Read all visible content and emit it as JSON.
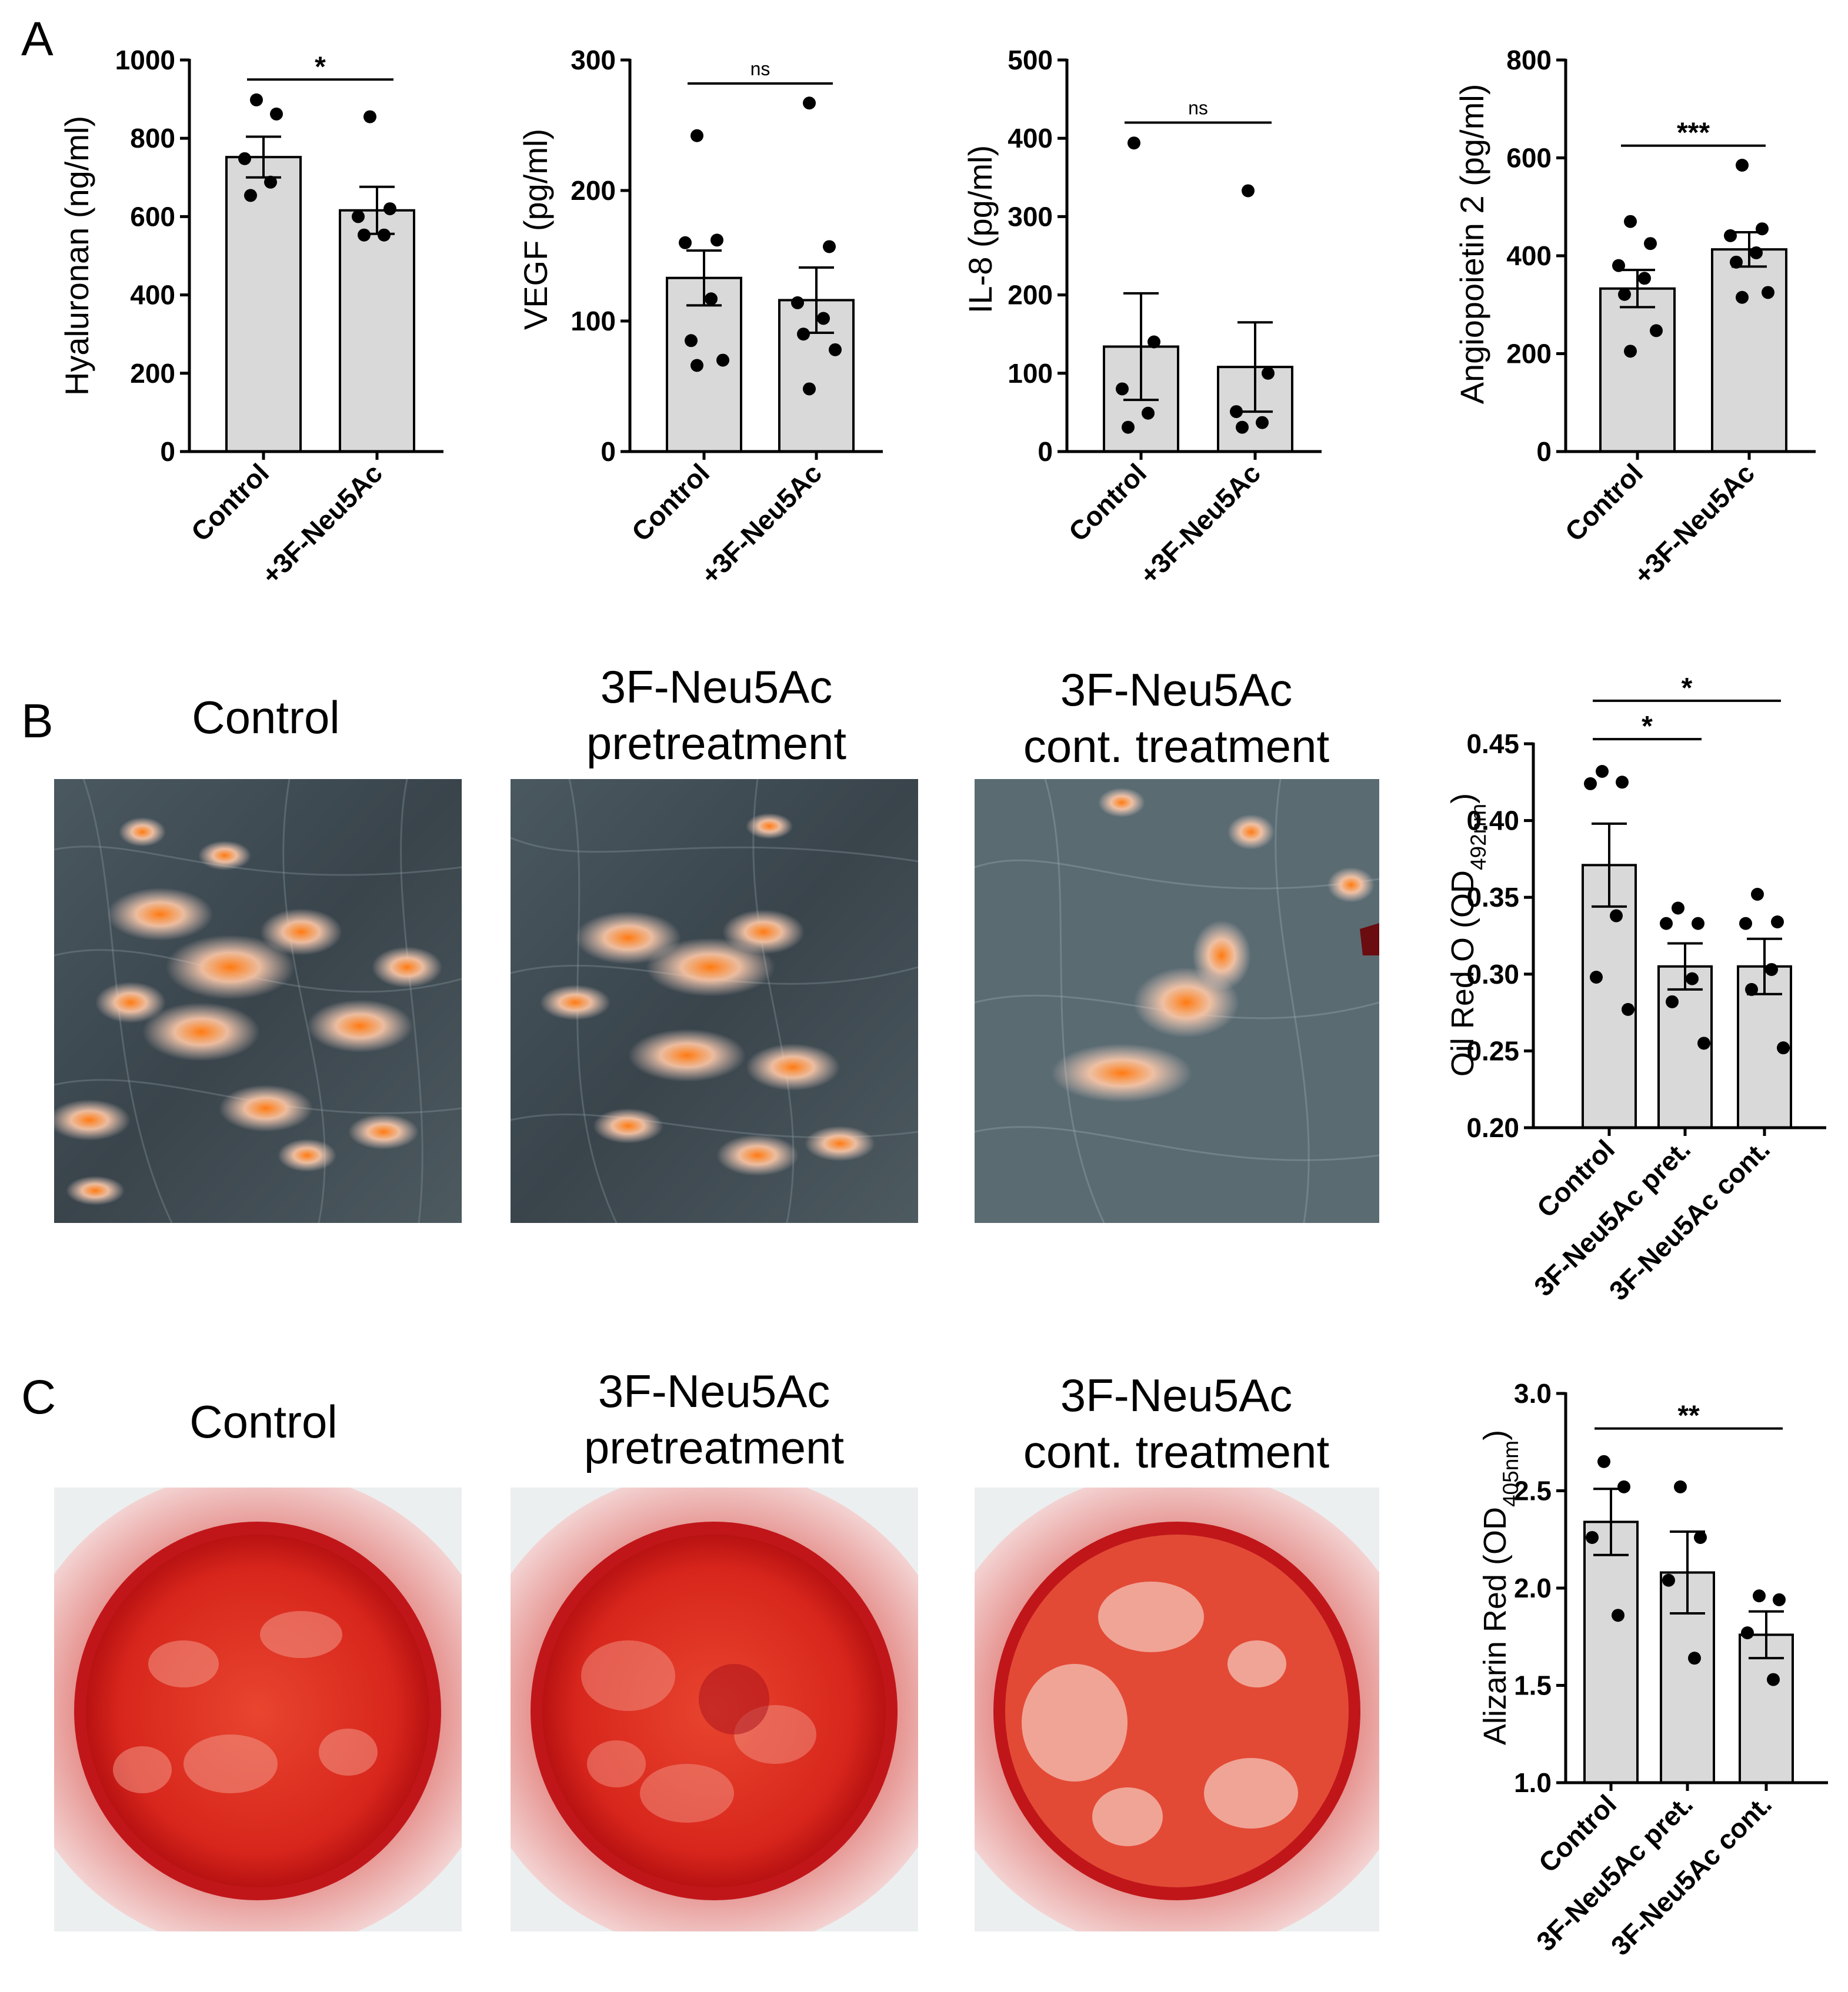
{
  "panels": {
    "A": {
      "letter": "A"
    },
    "B": {
      "letter": "B",
      "images": [
        {
          "title": [
            "Control"
          ]
        },
        {
          "title": [
            "3F-Neu5Ac",
            "pretreatment"
          ]
        },
        {
          "title": [
            "3F-Neu5Ac",
            "cont. treatment"
          ]
        }
      ]
    },
    "C": {
      "letter": "C",
      "images": [
        {
          "title": [
            "Control"
          ]
        },
        {
          "title": [
            "3F-Neu5Ac",
            "pretreatment"
          ]
        },
        {
          "title": [
            "3F-Neu5Ac",
            "cont. treatment"
          ]
        }
      ]
    }
  },
  "colors": {
    "bar_fill": "#d9d9d9",
    "axis": "#000000",
    "microscopy_bg": "#3d4a52",
    "stain_orange": "#ff8a1e",
    "dish_red": "#d8261c"
  },
  "chart_data": [
    {
      "id": "A1",
      "type": "bar",
      "ylabel": "Hyaluronan (ng/ml)",
      "ylim": [
        0,
        1000
      ],
      "yticks": [
        0,
        200,
        400,
        600,
        800,
        1000
      ],
      "categories": [
        "Control",
        "+3F-Neu5Ac"
      ],
      "values": [
        752,
        616
      ],
      "errors": [
        52,
        60
      ],
      "points": [
        [
          898,
          862,
          748,
          688,
          654
        ],
        [
          855,
          620,
          600,
          553,
          553
        ]
      ],
      "comparisons": [
        {
          "from": 0,
          "to": 1,
          "label": "*",
          "y": 950
        }
      ]
    },
    {
      "id": "A2",
      "type": "bar",
      "ylabel": "VEGF (pg/ml)",
      "ylim": [
        0,
        300
      ],
      "yticks": [
        0,
        100,
        200,
        300
      ],
      "categories": [
        "Control",
        "+3F-Neu5Ac"
      ],
      "values": [
        133,
        116
      ],
      "errors": [
        21,
        25
      ],
      "points": [
        [
          242,
          162,
          160,
          117,
          85,
          70,
          66
        ],
        [
          267,
          157,
          114,
          102,
          90,
          78,
          48
        ]
      ],
      "comparisons": [
        {
          "from": 0,
          "to": 1,
          "label": "ns",
          "y": 282
        }
      ]
    },
    {
      "id": "A3",
      "type": "bar",
      "ylabel": "IL-8 (pg/ml)",
      "ylim": [
        0,
        500
      ],
      "yticks": [
        0,
        100,
        200,
        300,
        400,
        500
      ],
      "categories": [
        "Control",
        "+3F-Neu5Ac"
      ],
      "values": [
        134,
        108
      ],
      "errors": [
        68,
        57
      ],
      "points": [
        [
          394,
          140,
          80,
          49,
          31
        ],
        [
          333,
          100,
          51,
          37,
          31
        ]
      ],
      "comparisons": [
        {
          "from": 0,
          "to": 1,
          "label": "ns",
          "y": 420
        }
      ]
    },
    {
      "id": "A4",
      "type": "bar",
      "ylabel": "Angiopoietin 2 (pg/ml)",
      "ylim": [
        0,
        800
      ],
      "yticks": [
        0,
        200,
        400,
        600,
        800
      ],
      "categories": [
        "Control",
        "+3F-Neu5Ac"
      ],
      "values": [
        333,
        413
      ],
      "errors": [
        38,
        35
      ],
      "points": [
        [
          470,
          425,
          380,
          354,
          321,
          247,
          205
        ],
        [
          585,
          455,
          441,
          406,
          387,
          325,
          315
        ]
      ],
      "comparisons": [
        {
          "from": 0,
          "to": 1,
          "label": "***",
          "y": 625
        }
      ]
    },
    {
      "id": "B",
      "type": "bar",
      "ylabel": "Oil Red O (OD",
      "ylabel_sub": "492nm",
      "ylabel_end": ")",
      "ylim": [
        0.2,
        0.45
      ],
      "yticks": [
        0.2,
        0.25,
        0.3,
        0.35,
        0.4,
        0.45
      ],
      "ytick_labels": [
        "0.20",
        "0.25",
        "0.30",
        "0.35",
        "0.40",
        "0.45"
      ],
      "categories": [
        "Control",
        "3F-Neu5Ac pret.",
        "3F-Neu5Ac cont."
      ],
      "values": [
        0.371,
        0.305,
        0.305
      ],
      "errors": [
        0.027,
        0.015,
        0.018
      ],
      "points": [
        [
          0.432,
          0.425,
          0.424,
          0.338,
          0.298,
          0.277
        ],
        [
          0.343,
          0.333,
          0.333,
          0.297,
          0.282,
          0.255
        ],
        [
          0.352,
          0.334,
          0.333,
          0.303,
          0.29,
          0.252
        ]
      ],
      "comparisons": [
        {
          "from": 0,
          "to": 1,
          "label": "*",
          "y": 0.453
        },
        {
          "from": 0,
          "to": 2,
          "label": "*",
          "y": 0.478
        }
      ]
    },
    {
      "id": "C",
      "type": "bar",
      "ylabel": "Alizarin Red (OD",
      "ylabel_sub": "405nm",
      "ylabel_end": ")",
      "ylim": [
        1.0,
        3.0
      ],
      "yticks": [
        1.0,
        1.5,
        2.0,
        2.5,
        3.0
      ],
      "ytick_labels": [
        "1.0",
        "1.5",
        "2.0",
        "2.5",
        "3.0"
      ],
      "categories": [
        "Control",
        "3F-Neu5Ac pret.",
        "3F-Neu5Ac cont."
      ],
      "values": [
        2.34,
        2.08,
        1.76
      ],
      "errors": [
        0.17,
        0.21,
        0.12
      ],
      "points": [
        [
          2.65,
          2.52,
          2.26,
          1.86
        ],
        [
          2.52,
          2.26,
          2.04,
          1.64
        ],
        [
          1.96,
          1.94,
          1.77,
          1.53
        ]
      ],
      "comparisons": [
        {
          "from": 0,
          "to": 2,
          "label": "**",
          "y": 2.82
        }
      ]
    }
  ]
}
